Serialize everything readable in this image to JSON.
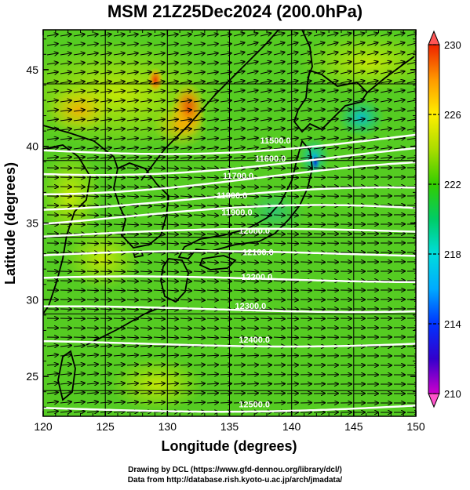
{
  "title": "MSM 21Z25Dec2024 (200.0hPa)",
  "x_axis": {
    "label": "Longitude (degrees)",
    "ticks": [
      "120",
      "125",
      "130",
      "135",
      "140",
      "145",
      "150"
    ],
    "range": [
      120,
      150
    ]
  },
  "y_axis": {
    "label": "Latitude  (degrees)",
    "ticks": [
      "25",
      "30",
      "35",
      "40",
      "45"
    ],
    "range": [
      22.4,
      47.6
    ]
  },
  "colorbar": {
    "ticks": [
      "210",
      "214",
      "218",
      "222",
      "226",
      "230"
    ],
    "range": [
      210,
      230
    ],
    "colors": [
      "#cc00cc",
      "#3300cc",
      "#0066ff",
      "#00cccc",
      "#00cc66",
      "#33cc00",
      "#99dd00",
      "#ddee00",
      "#ffcc00",
      "#ff8800",
      "#ee2200"
    ]
  },
  "contours": {
    "variable": "geopotential height",
    "color": "#ffffff",
    "labels": [
      {
        "text": "11500.0",
        "lon": 138.7,
        "lat": 40.2
      },
      {
        "text": "11600.0",
        "lon": 138.3,
        "lat": 39.0
      },
      {
        "text": "11700.0",
        "lon": 135.7,
        "lat": 37.9
      },
      {
        "text": "11800.0",
        "lon": 135.2,
        "lat": 36.6
      },
      {
        "text": "11900.0",
        "lon": 135.6,
        "lat": 35.5
      },
      {
        "text": "12000.0",
        "lon": 137.0,
        "lat": 34.3
      },
      {
        "text": "12100.0",
        "lon": 137.3,
        "lat": 32.9
      },
      {
        "text": "12200.0",
        "lon": 137.2,
        "lat": 31.3
      },
      {
        "text": "12300.0",
        "lon": 136.7,
        "lat": 29.4
      },
      {
        "text": "12400.0",
        "lon": 137.0,
        "lat": 27.2
      },
      {
        "text": "12500.0",
        "lon": 137.0,
        "lat": 23.0
      }
    ]
  },
  "footer": {
    "line1": "Drawing by DCL (https://www.gfd-dennou.org/library/dcl/)",
    "line2": "Data from http://database.rish.kyoto-u.ac.jp/arch/jmadata/"
  }
}
